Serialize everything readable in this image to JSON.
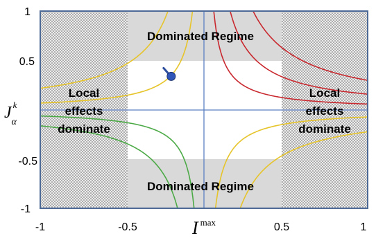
{
  "axes": {
    "x_ticks": [
      "-1",
      "-0.5",
      "0.5",
      "1"
    ],
    "y_ticks": [
      "1",
      "0.5",
      "-0.5",
      "-1"
    ],
    "x_label": {
      "main": "I",
      "sup": "max"
    },
    "y_label": {
      "main": "J",
      "sub": "α",
      "sup": "k"
    }
  },
  "regions": {
    "top": "Dominated Regime",
    "bottom": "Dominated Regime",
    "left": [
      "Local",
      "effects",
      "dominate"
    ],
    "right": [
      "Local",
      "effects",
      "dominate"
    ]
  },
  "colors": {
    "yellow": "#e6c42a",
    "red": "#c8282e",
    "green": "#4caa46",
    "axis_lines": "#5b7fc2",
    "frame": "#4d6a96",
    "shade": "#d9d9d9"
  },
  "marker": {
    "x": -0.2,
    "y": 0.34
  }
}
